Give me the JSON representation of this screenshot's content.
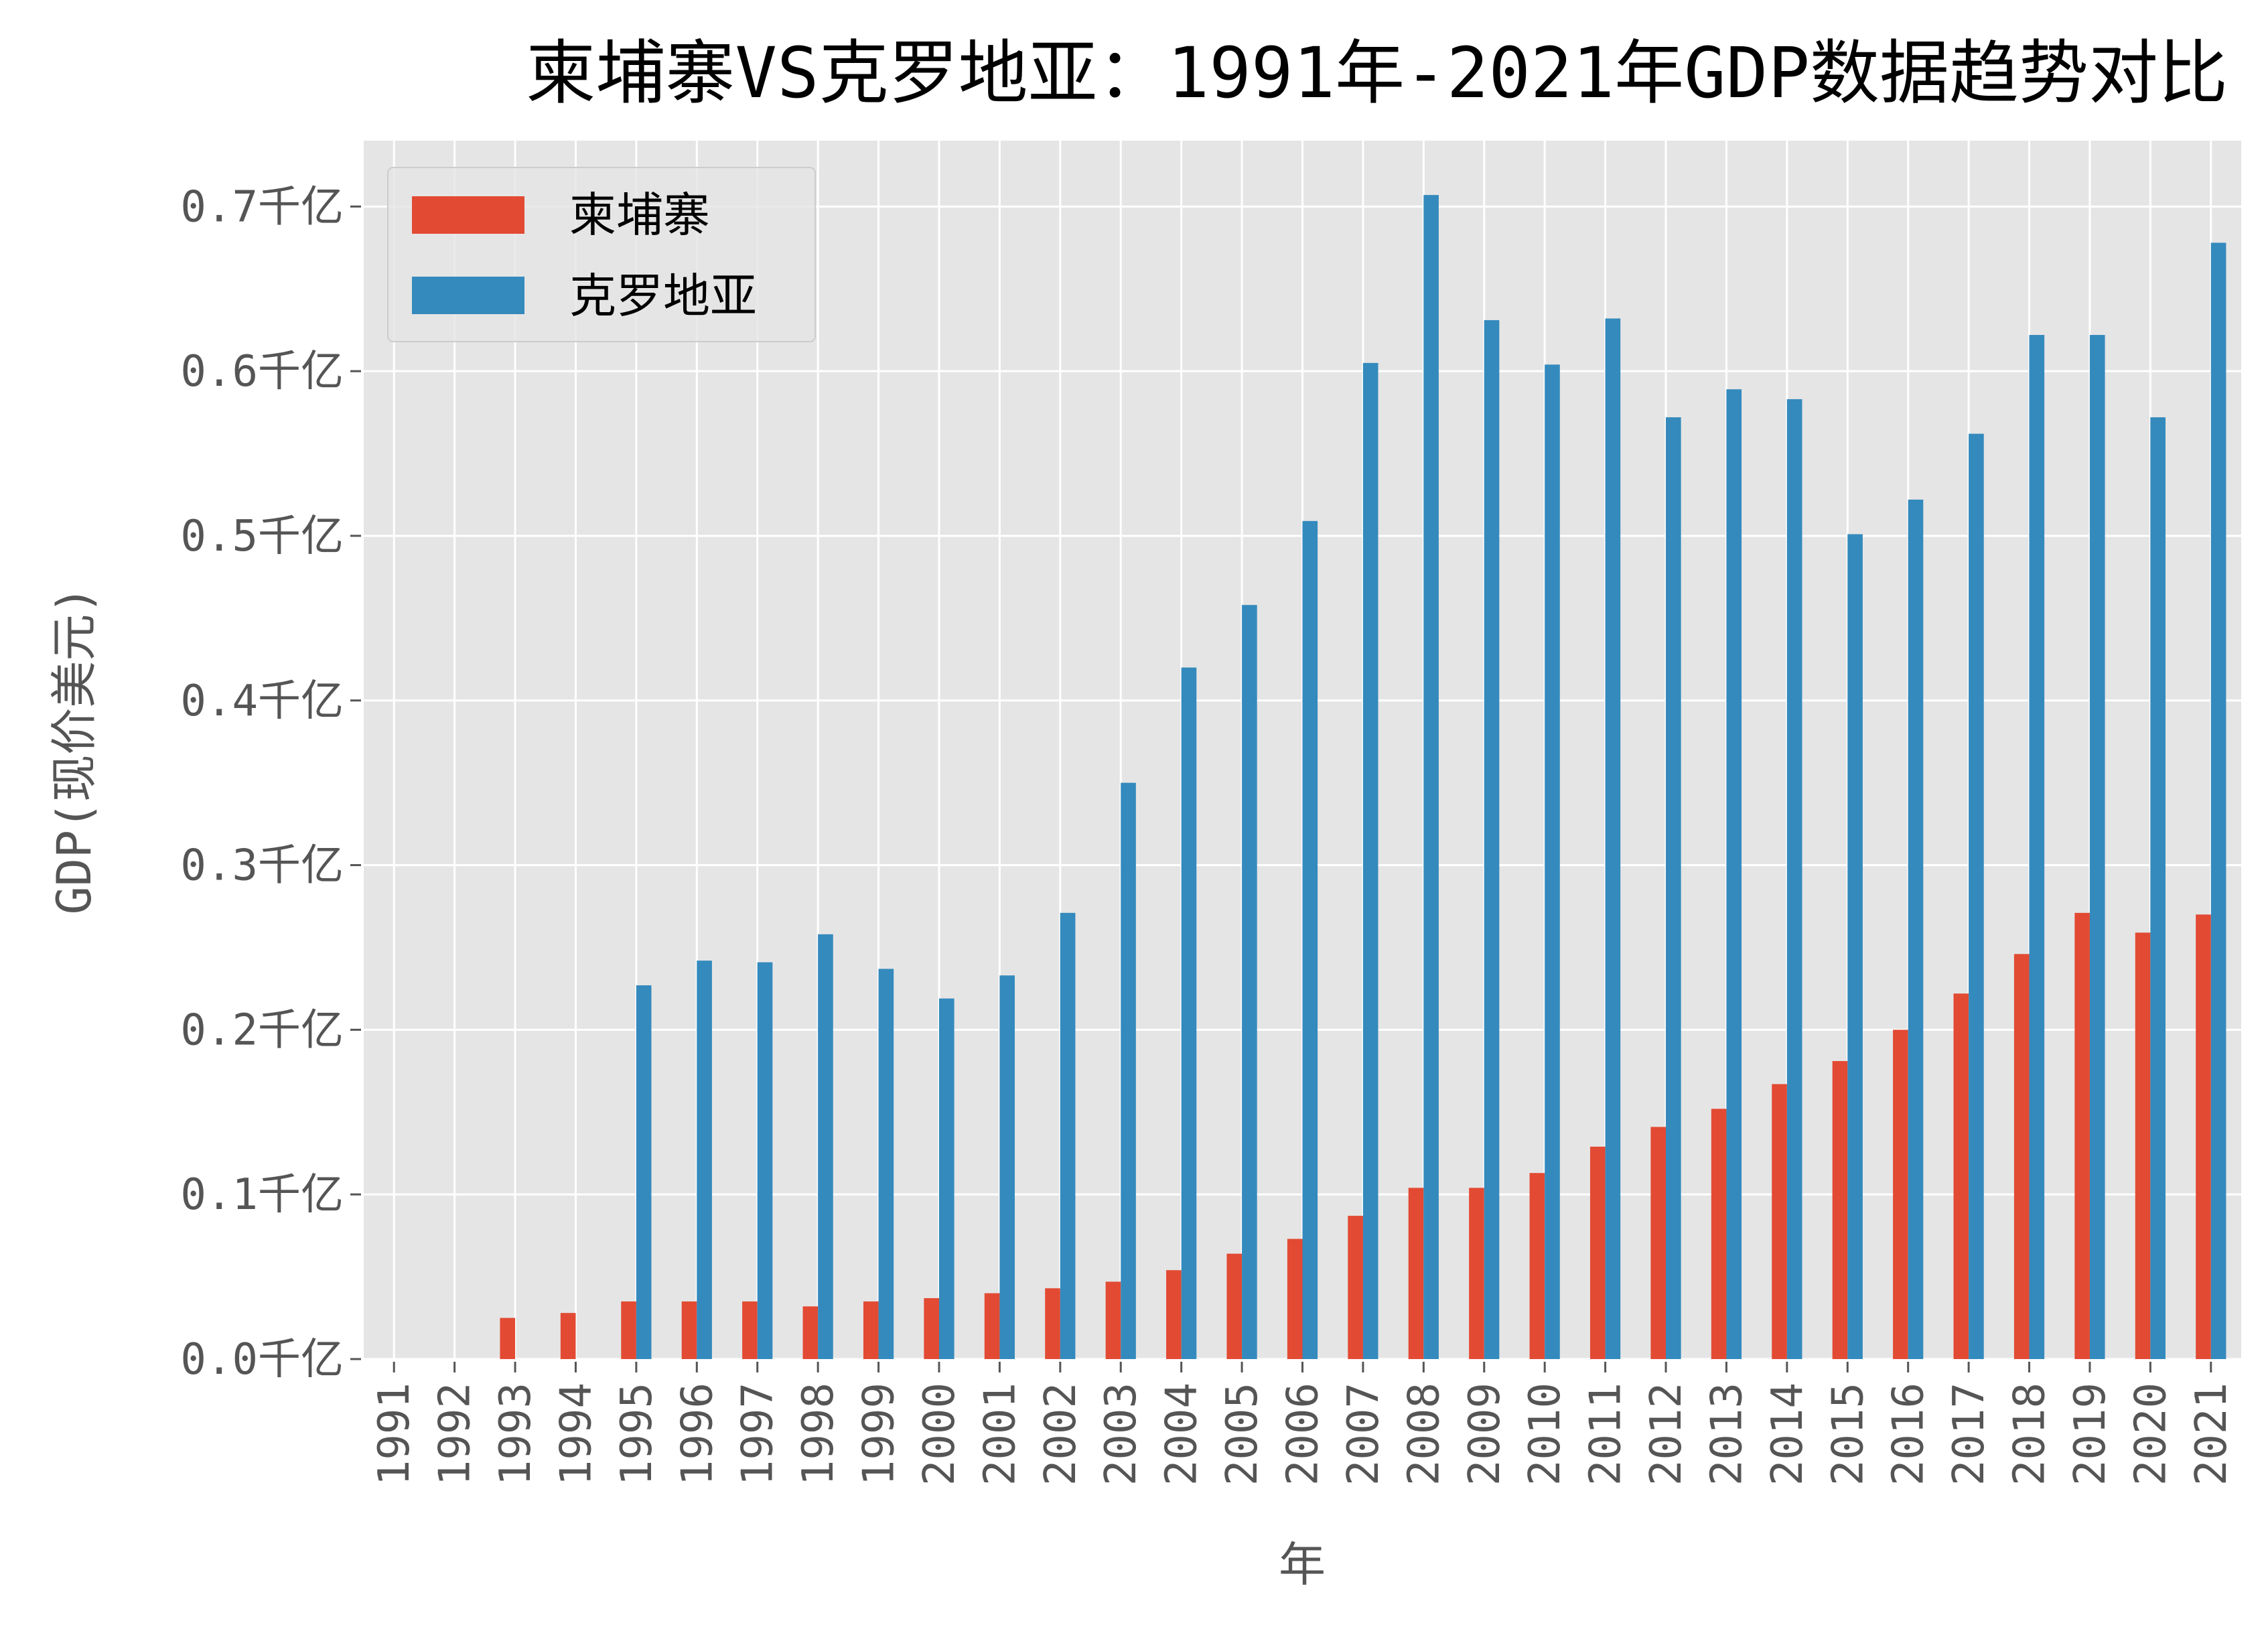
{
  "chart_data": {
    "type": "bar",
    "title": "柬埔寨VS克罗地亚：1991年-2021年GDP数据趋势对比",
    "xlabel": "年",
    "ylabel": "GDP(现价美元)",
    "ylim": [
      0,
      0.74
    ],
    "yticks": [
      0,
      0.1,
      0.2,
      0.3,
      0.4,
      0.5,
      0.6,
      0.7
    ],
    "ytick_labels": [
      "0.0千亿",
      "0.1千亿",
      "0.2千亿",
      "0.3千亿",
      "0.4千亿",
      "0.5千亿",
      "0.6千亿",
      "0.7千亿"
    ],
    "grid": true,
    "legend_position": "top-left",
    "categories": [
      "1991",
      "1992",
      "1993",
      "1994",
      "1995",
      "1996",
      "1997",
      "1998",
      "1999",
      "2000",
      "2001",
      "2002",
      "2003",
      "2004",
      "2005",
      "2006",
      "2007",
      "2008",
      "2009",
      "2010",
      "2011",
      "2012",
      "2013",
      "2014",
      "2015",
      "2016",
      "2017",
      "2018",
      "2019",
      "2020",
      "2021"
    ],
    "series": [
      {
        "name": "柬埔寨",
        "color": "#E24A33",
        "values": [
          null,
          null,
          0.025,
          0.028,
          0.035,
          0.035,
          0.035,
          0.032,
          0.035,
          0.037,
          0.04,
          0.043,
          0.047,
          0.054,
          0.064,
          0.073,
          0.087,
          0.104,
          0.104,
          0.113,
          0.129,
          0.141,
          0.152,
          0.167,
          0.181,
          0.2,
          0.222,
          0.246,
          0.271,
          0.259,
          0.27
        ]
      },
      {
        "name": "克罗地亚",
        "color": "#348ABD",
        "values": [
          null,
          null,
          null,
          null,
          0.227,
          0.242,
          0.241,
          0.258,
          0.237,
          0.219,
          0.233,
          0.271,
          0.35,
          0.42,
          0.458,
          0.509,
          0.605,
          0.707,
          0.631,
          0.604,
          0.632,
          0.572,
          0.589,
          0.583,
          0.501,
          0.522,
          0.562,
          0.622,
          0.622,
          0.572,
          0.678
        ]
      }
    ]
  }
}
